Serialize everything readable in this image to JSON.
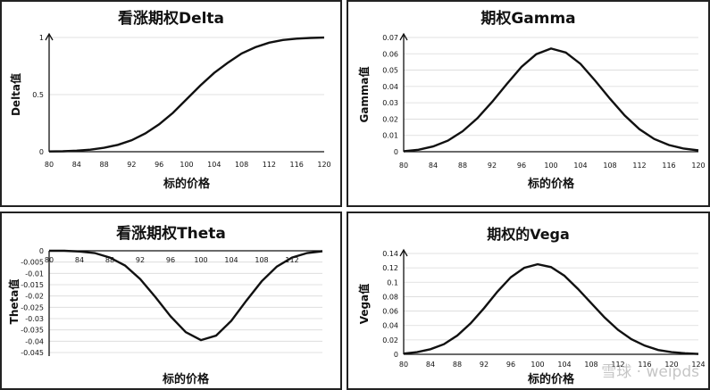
{
  "chart_data": [
    {
      "type": "line",
      "title": "看涨期权Delta",
      "xlabel": "标的价格",
      "ylabel": "Delta值",
      "x_ticks": [
        "80",
        "84",
        "88",
        "92",
        "96",
        "100",
        "104",
        "108",
        "112",
        "116",
        "120"
      ],
      "y_ticks": [
        "0",
        "0.5",
        "1"
      ],
      "xlim": [
        80,
        120
      ],
      "ylim": [
        0,
        1
      ],
      "grid": true,
      "series": [
        {
          "x": [
            80,
            82,
            84,
            86,
            88,
            90,
            92,
            94,
            96,
            98,
            100,
            102,
            104,
            106,
            108,
            110,
            112,
            114,
            116,
            118,
            120
          ],
          "y": [
            0.002,
            0.004,
            0.009,
            0.018,
            0.034,
            0.06,
            0.1,
            0.16,
            0.24,
            0.34,
            0.46,
            0.58,
            0.69,
            0.78,
            0.86,
            0.915,
            0.955,
            0.978,
            0.99,
            0.996,
            0.999
          ]
        }
      ]
    },
    {
      "type": "line",
      "title": "期权Gamma",
      "xlabel": "标的价格",
      "ylabel": "Gamma值",
      "x_ticks": [
        "80",
        "84",
        "88",
        "92",
        "96",
        "100",
        "104",
        "108",
        "112",
        "116",
        "120"
      ],
      "y_ticks": [
        "0",
        "0.01",
        "0.02",
        "0.03",
        "0.04",
        "0.05",
        "0.06",
        "0.07"
      ],
      "xlim": [
        80,
        120
      ],
      "ylim": [
        0,
        0.07
      ],
      "grid": true,
      "series": [
        {
          "x": [
            80,
            82,
            84,
            86,
            88,
            90,
            92,
            94,
            96,
            98,
            100,
            102,
            104,
            106,
            108,
            110,
            112,
            114,
            116,
            118,
            120
          ],
          "y": [
            0.0003,
            0.0012,
            0.0032,
            0.0068,
            0.0125,
            0.0205,
            0.0305,
            0.0415,
            0.052,
            0.0598,
            0.0632,
            0.0608,
            0.0538,
            0.0435,
            0.0325,
            0.0222,
            0.0138,
            0.0078,
            0.0041,
            0.0019,
            0.0008
          ]
        }
      ]
    },
    {
      "type": "line",
      "title": "看涨期权Theta",
      "xlabel": "标的价格",
      "ylabel": "Theta值",
      "x_ticks": [
        "80",
        "84",
        "88",
        "92",
        "96",
        "100",
        "104",
        "108",
        "112"
      ],
      "y_ticks": [
        "0",
        "-0.005",
        "-0.01",
        "-0.015",
        "-0.02",
        "-0.025",
        "-0.03",
        "-0.035",
        "-0.04",
        "-0.045"
      ],
      "xlim": [
        80,
        116
      ],
      "ylim": [
        -0.045,
        0
      ],
      "grid": true,
      "series": [
        {
          "x": [
            80,
            82,
            84,
            86,
            88,
            90,
            92,
            94,
            96,
            98,
            100,
            102,
            104,
            106,
            108,
            110,
            112,
            114,
            116
          ],
          "y": [
            0,
            0,
            -0.0003,
            -0.001,
            -0.003,
            -0.0065,
            -0.0125,
            -0.0205,
            -0.029,
            -0.036,
            -0.0395,
            -0.0375,
            -0.031,
            -0.022,
            -0.0135,
            -0.007,
            -0.003,
            -0.001,
            -0.0002
          ]
        }
      ]
    },
    {
      "type": "line",
      "title": "期权的Vega",
      "xlabel": "标的价格",
      "ylabel": "Vega值",
      "x_ticks": [
        "80",
        "84",
        "88",
        "92",
        "96",
        "100",
        "104",
        "108",
        "112",
        "116",
        "120",
        "124"
      ],
      "y_ticks": [
        "0",
        "0.02",
        "0.04",
        "0.06",
        "0.08",
        "0.1",
        "0.12",
        "0.14"
      ],
      "xlim": [
        80,
        124
      ],
      "ylim": [
        0,
        0.14
      ],
      "grid": true,
      "series": [
        {
          "x": [
            80,
            82,
            84,
            86,
            88,
            90,
            92,
            94,
            96,
            98,
            100,
            102,
            104,
            106,
            108,
            110,
            112,
            114,
            116,
            118,
            120,
            122,
            124
          ],
          "y": [
            0.001,
            0.003,
            0.007,
            0.014,
            0.026,
            0.043,
            0.064,
            0.087,
            0.107,
            0.12,
            0.125,
            0.121,
            0.109,
            0.091,
            0.071,
            0.051,
            0.034,
            0.021,
            0.012,
            0.006,
            0.003,
            0.0015,
            0.0005
          ]
        }
      ]
    }
  ],
  "watermark": "雪球 · weipds"
}
